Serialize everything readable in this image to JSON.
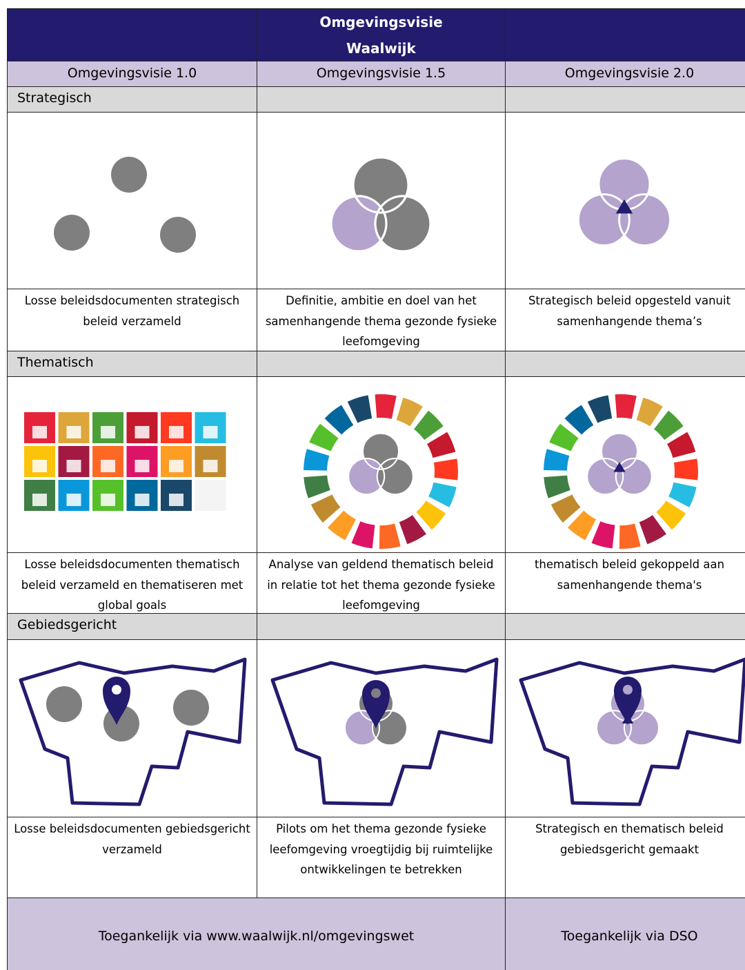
{
  "header": {
    "title": "Omgevingsvisie Waalwijk"
  },
  "columns": [
    "Omgevingsvisie 1.0",
    "Omgevingsvisie 1.5",
    "Omgevingsvisie 2.0"
  ],
  "sections": [
    {
      "title": "Strategisch",
      "captions": [
        "Losse beleidsdocumenten strategisch beleid verzameld",
        "Definitie, ambitie en doel van het samenhangende thema gezonde fysieke leefomgeving",
        "Strategisch beleid opgesteld vanuit samenhangende thema’s"
      ]
    },
    {
      "title": "Thematisch",
      "captions": [
        "Losse beleidsdocumenten thematisch beleid verzameld en thematiseren met global goals",
        "Analyse van geldend thematisch beleid in relatie tot het thema gezonde fysieke leefomgeving",
        "thematisch beleid gekoppeld aan samenhangende thema's"
      ]
    },
    {
      "title": "Gebiedsgericht",
      "captions": [
        "Losse beleidsdocumenten gebiedsgericht verzameld",
        "Pilots om het thema gezonde fysieke leefomgeving vroegtijdig bij ruimtelijke ontwikkelingen te betrekken",
        "Strategisch en thematisch beleid gebiedsgericht gemaakt"
      ]
    }
  ],
  "footer": [
    "Toegankelijk via www.waalwijk.nl/omgevingswet",
    "Toegankelijk via DSO"
  ]
}
